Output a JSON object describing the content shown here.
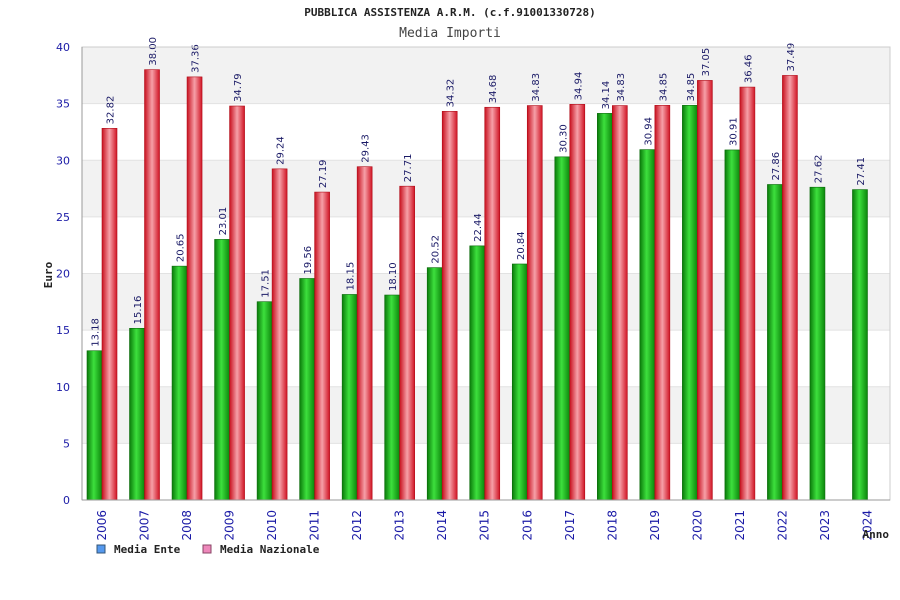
{
  "chart_data": {
    "type": "bar",
    "title": "PUBBLICA ASSISTENZA A.R.M. (c.f.91001330728)",
    "subtitle": "Media Importi",
    "xlabel": "Anno",
    "ylabel": "Euro",
    "ylim": [
      0,
      40
    ],
    "yticks": [
      0,
      5,
      10,
      15,
      20,
      25,
      30,
      35,
      40
    ],
    "categories": [
      "2006",
      "2007",
      "2008",
      "2009",
      "2010",
      "2011",
      "2012",
      "2013",
      "2014",
      "2015",
      "2016",
      "2017",
      "2018",
      "2019",
      "2020",
      "2021",
      "2022",
      "2023",
      "2024"
    ],
    "series": [
      {
        "name": "Media Ente",
        "color": "#22bb22",
        "legend_color": "#5599ee",
        "values": [
          13.18,
          15.16,
          20.65,
          23.01,
          17.51,
          19.56,
          18.15,
          18.1,
          20.52,
          22.44,
          20.84,
          30.3,
          34.14,
          30.94,
          34.85,
          30.91,
          27.86,
          27.62,
          27.41
        ],
        "labels": [
          "13.18",
          "15.16",
          "20.65",
          "23.01",
          "17.51",
          "19.56",
          "18.15",
          "18.10",
          "20.52",
          "22.44",
          "20.84",
          "30.30",
          "34.14",
          "30.94",
          "34.85",
          "30.91",
          "27.86",
          "27.62",
          "27.41"
        ]
      },
      {
        "name": "Media Nazionale",
        "color": "#ee2233",
        "legend_color": "#ee88bb",
        "values": [
          32.82,
          38.0,
          37.36,
          34.79,
          29.24,
          27.19,
          29.43,
          27.71,
          34.32,
          34.68,
          34.83,
          34.94,
          34.83,
          34.85,
          37.05,
          36.46,
          37.49,
          null,
          null
        ],
        "labels": [
          "32.82",
          "38.00",
          "37.36",
          "34.79",
          "29.24",
          "27.19",
          "29.43",
          "27.71",
          "34.32",
          "34.68",
          "34.83",
          "34.94",
          "34.83",
          "34.85",
          "37.05",
          "36.46",
          "37.49",
          null,
          null
        ]
      }
    ],
    "legend_position": "bottom-left",
    "grid": true
  }
}
